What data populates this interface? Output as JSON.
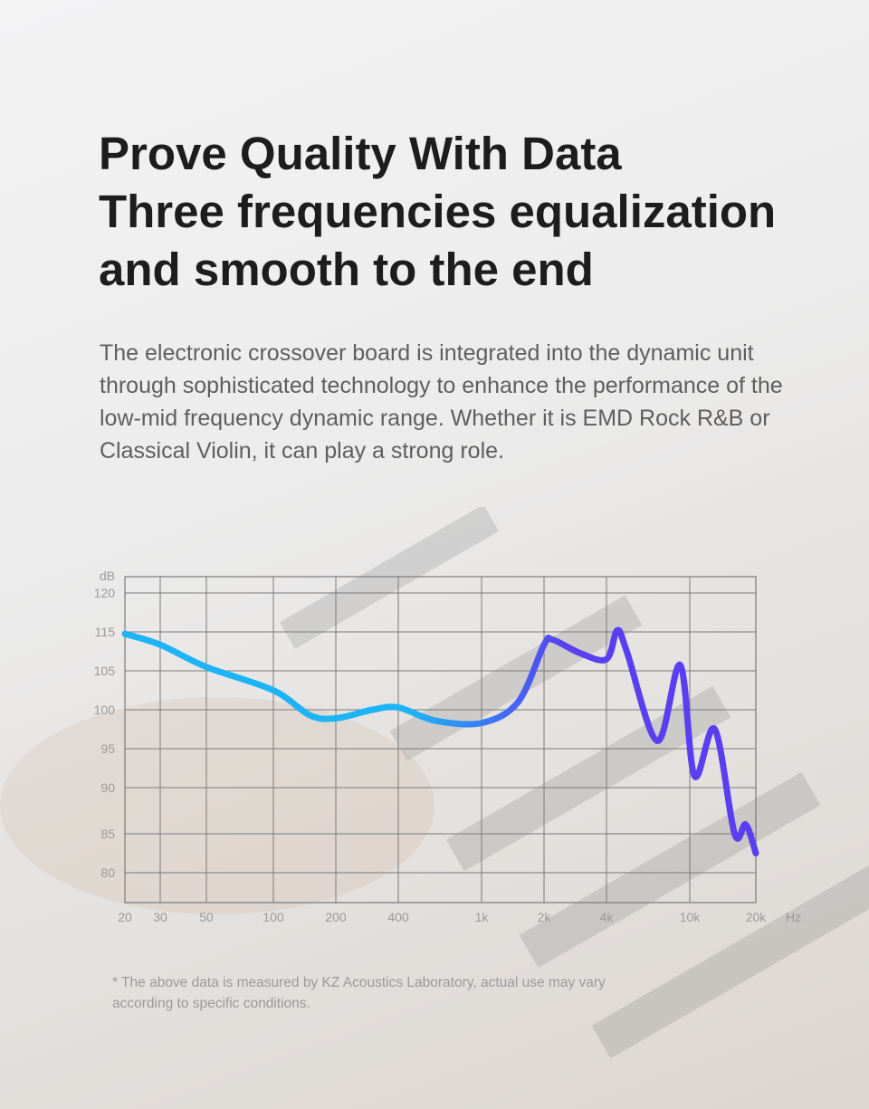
{
  "heading": {
    "line1": "Prove Quality With Data",
    "line2": "Three frequencies equalization",
    "line3": "and smooth to the end"
  },
  "description": "The electronic crossover board is integrated into the dynamic unit through sophisticated technology to enhance the performance of the low-mid frequency dynamic range. Whether it is EMD Rock R&B or Classical Violin, it can play a strong role.",
  "footnote": {
    "line1": "* The above data is measured by KZ Acoustics Laboratory, actual use may vary",
    "line2": "according to specific conditions."
  },
  "chart_data": {
    "type": "line",
    "title": "",
    "xlabel": "Hz",
    "ylabel": "dB",
    "x_ticks": [
      20,
      30,
      50,
      100,
      200,
      400,
      1000,
      2000,
      4000,
      10000,
      20000
    ],
    "x_tick_labels": [
      "20",
      "30",
      "50",
      "100",
      "200",
      "400",
      "1k",
      "2k",
      "4k",
      "10k",
      "20k"
    ],
    "y_ticks": [
      120,
      115,
      105,
      100,
      95,
      90,
      85,
      80
    ],
    "y_tick_labels": [
      "120",
      "115",
      "105",
      "100",
      "95",
      "90",
      "85",
      "80"
    ],
    "xlim": [
      20,
      20000
    ],
    "x_scale": "log",
    "grid": true,
    "colors": {
      "low": "#1cb4f5",
      "high": "#5a3ff0",
      "grid": "#7a7a7a"
    },
    "series": [
      {
        "x": [
          20,
          30,
          50,
          100,
          150,
          200,
          300,
          400,
          600,
          1000,
          1500,
          2000,
          2200,
          3000,
          4000,
          4500,
          5000,
          7000,
          9000,
          10500,
          13000,
          16000,
          18000,
          20000
        ],
        "y": [
          114.5,
          111.7,
          106,
          102.5,
          99.3,
          98.9,
          100,
          100.3,
          98.6,
          98.3,
          101,
          111.7,
          113,
          109.5,
          108,
          115.2,
          110,
          96,
          106.5,
          91.5,
          97.5,
          85,
          86,
          82.5
        ]
      }
    ]
  }
}
